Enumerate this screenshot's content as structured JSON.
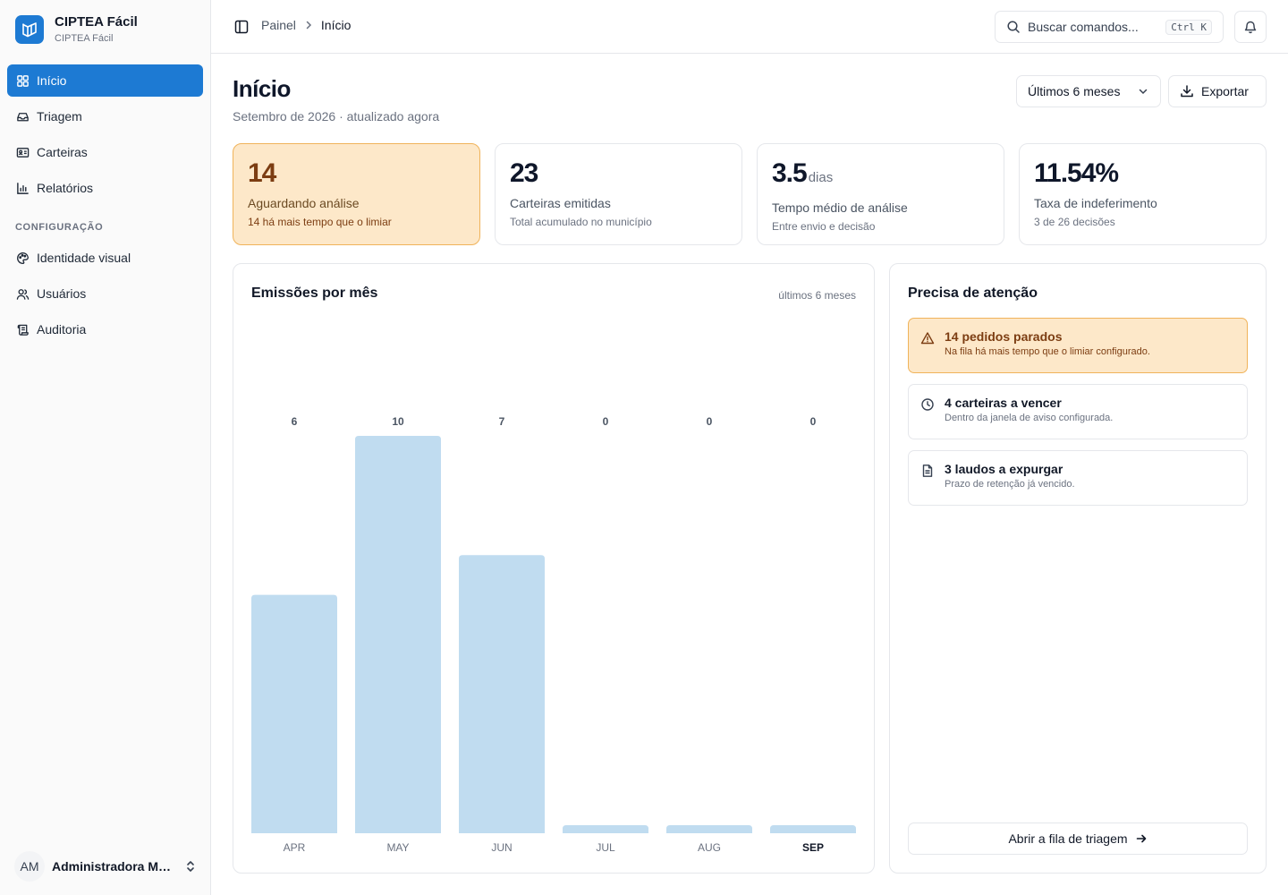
{
  "brand": {
    "name": "CIPTEA Fácil",
    "subtitle": "CIPTEA Fácil"
  },
  "sidebar": {
    "items": [
      {
        "label": "Início",
        "icon": "grid-icon",
        "active": true
      },
      {
        "label": "Triagem",
        "icon": "inbox-icon"
      },
      {
        "label": "Carteiras",
        "icon": "id-card-icon"
      },
      {
        "label": "Relatórios",
        "icon": "bar-chart-icon"
      }
    ],
    "section_label": "CONFIGURAÇÃO",
    "config_items": [
      {
        "label": "Identidade visual",
        "icon": "palette-icon"
      },
      {
        "label": "Usuários",
        "icon": "users-icon"
      },
      {
        "label": "Auditoria",
        "icon": "scroll-icon"
      }
    ],
    "user": {
      "initials": "AM",
      "name": "Administradora Municipal"
    }
  },
  "topbar": {
    "breadcrumb": [
      "Painel",
      "Início"
    ],
    "search_placeholder": "Buscar comandos...",
    "search_shortcut": "Ctrl K"
  },
  "header": {
    "title": "Início",
    "subtitle": "Setembro de 2026 · atualizado agora",
    "range_label": "Últimos 6 meses",
    "export_label": "Exportar"
  },
  "stats": [
    {
      "value": "14",
      "unit": "",
      "label": "Aguardando análise",
      "note": "14 há mais tempo que o limiar",
      "highlight": true
    },
    {
      "value": "23",
      "unit": "",
      "label": "Carteiras emitidas",
      "note": "Total acumulado no município"
    },
    {
      "value": "3.5",
      "unit": "dias",
      "label": "Tempo médio de análise",
      "note": "Entre envio e decisão"
    },
    {
      "value": "11.54%",
      "unit": "",
      "label": "Taxa de indeferimento",
      "note": "3 de 26 decisões"
    }
  ],
  "chart": {
    "title": "Emissões por mês",
    "range_label": "últimos 6 meses"
  },
  "chart_data": {
    "type": "bar",
    "categories": [
      "APR",
      "MAY",
      "JUN",
      "JUL",
      "AUG",
      "SEP"
    ],
    "values": [
      6,
      10,
      7,
      0,
      0,
      0
    ],
    "highlight_category": "SEP",
    "ylim": [
      0,
      10
    ],
    "bar_color": "#c0dcf0"
  },
  "attention": {
    "title": "Precisa de atenção",
    "items": [
      {
        "title": "14 pedidos parados",
        "desc": "Na fila há mais tempo que o limiar configurado.",
        "icon": "warning-icon",
        "highlight": true
      },
      {
        "title": "4 carteiras a vencer",
        "desc": "Dentro da janela de aviso configurada.",
        "icon": "clock-icon"
      },
      {
        "title": "3 laudos a expurgar",
        "desc": "Prazo de retenção já vencido.",
        "icon": "document-icon"
      }
    ],
    "queue_button": "Abrir a fila de triagem"
  },
  "colors": {
    "accent": "#1d7ad3",
    "warn_bg": "#fde8c9",
    "warn_border": "#f0b35a",
    "warn_text": "#7c3d12"
  }
}
